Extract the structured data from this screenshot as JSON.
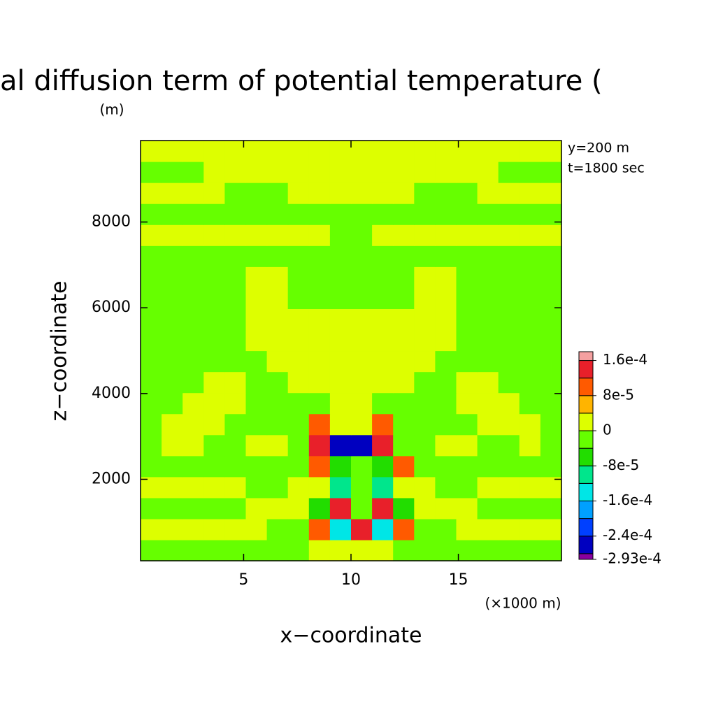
{
  "chart_data": {
    "type": "contour",
    "title": "al diffusion term of potential temperature (",
    "y_unit": "(m)",
    "x_unit": "(×1000 m)",
    "annotations": [
      "y=200 m",
      "t=1800 sec"
    ],
    "xlabel": "x−coordinate",
    "ylabel": "z−coordinate",
    "xlim": [
      0.2,
      19.8
    ],
    "ylim": [
      100,
      9900
    ],
    "xticks": [
      5,
      10,
      15
    ],
    "yticks": [
      2000,
      4000,
      6000,
      8000
    ],
    "levels": [
      -0.000293,
      -0.00028,
      -0.00024,
      -0.0002,
      -0.00016,
      -0.00012,
      -8e-05,
      -4e-05,
      0,
      4e-05,
      8e-05,
      0.00012,
      0.00016,
      0.00018
    ],
    "colors": [
      "#8a00a0",
      "#0000c0",
      "#0040ff",
      "#00a0ff",
      "#00e6e6",
      "#00e68c",
      "#22dd00",
      "#66ff00",
      "#ddff00",
      "#ffb400",
      "#ff5a00",
      "#e8202a",
      "#f4a0a0"
    ],
    "colorbar_ticks": [
      {
        "value": 0.00016,
        "label": "1.6e-4"
      },
      {
        "value": 8e-05,
        "label": "8e-5"
      },
      0,
      {
        "value": -8e-05,
        "label": "-8e-5"
      },
      {
        "value": -0.00016,
        "label": "-1.6e-4"
      },
      {
        "value": -0.00024,
        "label": "-2.4e-4"
      },
      {
        "value": -0.000293,
        "label": "-2.93e-4"
      }
    ],
    "z": [
      [
        -2e-05,
        -2e-05,
        -2e-05,
        -2e-05,
        -2e-05,
        -2e-05,
        -2e-05,
        -2e-05,
        2e-05,
        2e-05,
        2e-05,
        2e-05,
        -2e-05,
        -2e-05,
        -2e-05,
        -2e-05,
        -2e-05,
        -2e-05,
        -2e-05,
        -2e-05
      ],
      [
        2e-05,
        2e-05,
        2e-05,
        2e-05,
        2e-05,
        2e-05,
        -2e-05,
        -2e-05,
        0.0001,
        -0.00014,
        0.00014,
        -0.00014,
        0.0001,
        -2e-05,
        -2e-05,
        2e-05,
        2e-05,
        2e-05,
        2e-05,
        2e-05
      ],
      [
        -2e-05,
        -2e-05,
        -2e-05,
        -2e-05,
        -2e-05,
        2e-05,
        2e-05,
        2e-05,
        -6e-05,
        0.00014,
        -2e-05,
        0.00014,
        -6e-05,
        2e-05,
        2e-05,
        2e-05,
        -2e-05,
        -2e-05,
        -2e-05,
        -2e-05
      ],
      [
        2e-05,
        2e-05,
        2e-05,
        2e-05,
        2e-05,
        -2e-05,
        -2e-05,
        2e-05,
        2e-05,
        -0.0001,
        -2e-05,
        -0.0001,
        2e-05,
        2e-05,
        -2e-05,
        -2e-05,
        2e-05,
        2e-05,
        2e-05,
        2e-05
      ],
      [
        -2e-05,
        -2e-05,
        -2e-05,
        -2e-05,
        -2e-05,
        -2e-05,
        -2e-05,
        -2e-05,
        0.0001,
        -6e-05,
        -2e-05,
        -6e-05,
        0.0001,
        -2e-05,
        -2e-05,
        -2e-05,
        -2e-05,
        -2e-05,
        -2e-05,
        -2e-05
      ],
      [
        -2e-05,
        2e-05,
        2e-05,
        -2e-05,
        -2e-05,
        2e-05,
        2e-05,
        -2e-05,
        0.00014,
        -0.00026,
        -0.00026,
        0.00014,
        -2e-05,
        -2e-05,
        2e-05,
        2e-05,
        -2e-05,
        -2e-05,
        2e-05,
        -2e-05
      ],
      [
        -2e-05,
        2e-05,
        2e-05,
        2e-05,
        -2e-05,
        -2e-05,
        -2e-05,
        -2e-05,
        0.0001,
        2e-05,
        2e-05,
        0.0001,
        -2e-05,
        -2e-05,
        -2e-05,
        -2e-05,
        2e-05,
        2e-05,
        2e-05,
        -2e-05
      ],
      [
        -2e-05,
        -2e-05,
        2e-05,
        2e-05,
        2e-05,
        -2e-05,
        -2e-05,
        -2e-05,
        -2e-05,
        2e-05,
        2e-05,
        -2e-05,
        -2e-05,
        -2e-05,
        -2e-05,
        2e-05,
        2e-05,
        2e-05,
        -2e-05,
        -2e-05
      ],
      [
        -2e-05,
        -2e-05,
        -2e-05,
        2e-05,
        2e-05,
        -2e-05,
        -2e-05,
        2e-05,
        2e-05,
        2e-05,
        2e-05,
        2e-05,
        2e-05,
        -2e-05,
        -2e-05,
        2e-05,
        2e-05,
        -2e-05,
        -2e-05,
        -2e-05
      ],
      [
        -2e-05,
        -2e-05,
        -2e-05,
        -2e-05,
        -2e-05,
        -2e-05,
        2e-05,
        2e-05,
        2e-05,
        2e-05,
        2e-05,
        2e-05,
        2e-05,
        2e-05,
        -2e-05,
        -2e-05,
        -2e-05,
        -2e-05,
        -2e-05,
        -2e-05
      ],
      [
        -2e-05,
        -2e-05,
        -2e-05,
        -2e-05,
        -2e-05,
        2e-05,
        2e-05,
        2e-05,
        2e-05,
        2e-05,
        2e-05,
        2e-05,
        2e-05,
        2e-05,
        2e-05,
        -2e-05,
        -2e-05,
        -2e-05,
        -2e-05,
        -2e-05
      ],
      [
        -2e-05,
        -2e-05,
        -2e-05,
        -2e-05,
        -2e-05,
        2e-05,
        2e-05,
        2e-05,
        2e-05,
        2e-05,
        2e-05,
        2e-05,
        2e-05,
        2e-05,
        2e-05,
        -2e-05,
        -2e-05,
        -2e-05,
        -2e-05,
        -2e-05
      ],
      [
        -2e-05,
        -2e-05,
        -2e-05,
        -2e-05,
        -2e-05,
        2e-05,
        2e-05,
        -2e-05,
        -2e-05,
        -2e-05,
        -2e-05,
        -2e-05,
        -2e-05,
        2e-05,
        2e-05,
        -2e-05,
        -2e-05,
        -2e-05,
        -2e-05,
        -2e-05
      ],
      [
        -2e-05,
        -2e-05,
        -2e-05,
        -2e-05,
        -2e-05,
        2e-05,
        2e-05,
        -2e-05,
        -2e-05,
        -2e-05,
        -2e-05,
        -2e-05,
        -2e-05,
        2e-05,
        2e-05,
        -2e-05,
        -2e-05,
        -2e-05,
        -2e-05,
        -2e-05
      ],
      [
        -2e-05,
        -2e-05,
        -2e-05,
        -2e-05,
        -2e-05,
        -2e-05,
        -2e-05,
        -2e-05,
        -2e-05,
        -2e-05,
        -2e-05,
        -2e-05,
        -2e-05,
        -2e-05,
        -2e-05,
        -2e-05,
        -2e-05,
        -2e-05,
        -2e-05,
        -2e-05
      ],
      [
        2e-05,
        2e-05,
        2e-05,
        2e-05,
        2e-05,
        2e-05,
        2e-05,
        2e-05,
        2e-05,
        -2e-05,
        -2e-05,
        2e-05,
        2e-05,
        2e-05,
        2e-05,
        2e-05,
        2e-05,
        2e-05,
        2e-05,
        2e-05
      ],
      [
        -2e-05,
        -2e-05,
        -2e-05,
        -2e-05,
        -2e-05,
        -2e-05,
        -2e-05,
        -2e-05,
        -2e-05,
        -2e-05,
        -2e-05,
        -2e-05,
        -2e-05,
        -2e-05,
        -2e-05,
        -2e-05,
        -2e-05,
        -2e-05,
        -2e-05,
        -2e-05
      ],
      [
        2e-05,
        2e-05,
        2e-05,
        2e-05,
        -2e-05,
        -2e-05,
        -2e-05,
        2e-05,
        2e-05,
        2e-05,
        2e-05,
        2e-05,
        2e-05,
        -2e-05,
        -2e-05,
        -2e-05,
        2e-05,
        2e-05,
        2e-05,
        2e-05
      ],
      [
        -2e-05,
        -2e-05,
        -2e-05,
        2e-05,
        2e-05,
        2e-05,
        2e-05,
        2e-05,
        2e-05,
        2e-05,
        2e-05,
        2e-05,
        2e-05,
        2e-05,
        2e-05,
        2e-05,
        2e-05,
        -2e-05,
        -2e-05,
        -2e-05
      ],
      [
        2e-05,
        2e-05,
        2e-05,
        2e-05,
        2e-05,
        2e-05,
        2e-05,
        2e-05,
        2e-05,
        2e-05,
        2e-05,
        2e-05,
        2e-05,
        2e-05,
        2e-05,
        2e-05,
        2e-05,
        2e-05,
        2e-05,
        2e-05
      ]
    ]
  }
}
